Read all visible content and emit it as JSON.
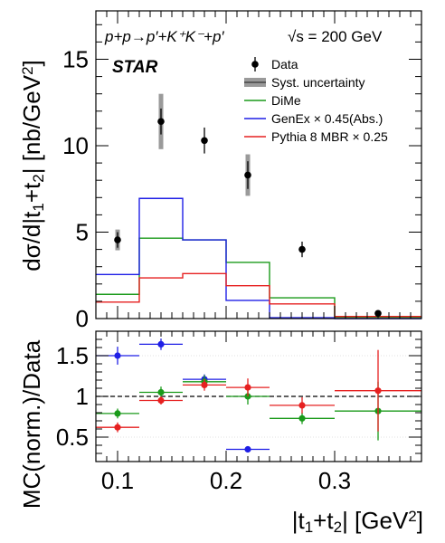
{
  "chart_data": [
    {
      "type": "line",
      "title": "",
      "ylabel_parts": [
        "dσ/d|t",
        "1",
        "+t",
        "2",
        "| [nb/GeV",
        "2",
        "]"
      ],
      "xlim": [
        0.08,
        0.38
      ],
      "ylim": [
        0,
        17.8
      ],
      "yticks": [
        0,
        5,
        10,
        15
      ],
      "ytick_labels": [
        "0",
        "5",
        "10",
        "15"
      ],
      "xticks": [
        0.1,
        0.2,
        0.3
      ],
      "process_label": "p+p→p′+K⁺K⁻+p′",
      "energy_label": "√s = 200 GeV",
      "experiment_label": "STAR",
      "legend": [
        {
          "label": "Data",
          "kind": "marker",
          "color": "#000000"
        },
        {
          "label": "Syst. uncertainty",
          "kind": "band",
          "color": "#9a9a9a"
        },
        {
          "label": "DiMe",
          "kind": "line",
          "color": "#1a9a1a"
        },
        {
          "label": "GenEx × 0.45(Abs.)",
          "kind": "line",
          "color": "#1f1fe6"
        },
        {
          "label": "Pythia 8 MBR × 0.25",
          "kind": "line",
          "color": "#e62020"
        }
      ],
      "data_points": [
        {
          "x": 0.1,
          "y": 4.55,
          "stat": 0.45,
          "syst": 0.6
        },
        {
          "x": 0.14,
          "y": 11.4,
          "stat": 0.75,
          "syst": 1.6
        },
        {
          "x": 0.18,
          "y": 10.3,
          "stat": 0.75,
          "syst": 0.0
        },
        {
          "x": 0.22,
          "y": 8.3,
          "stat": 0.8,
          "syst": 1.2
        },
        {
          "x": 0.27,
          "y": 4.0,
          "stat": 0.45,
          "syst": 0.0
        },
        {
          "x": 0.34,
          "y": 0.3,
          "stat": 0.1,
          "syst": 0.0
        }
      ],
      "bin_edges": [
        0.08,
        0.12,
        0.16,
        0.2,
        0.24,
        0.3,
        0.38
      ],
      "series": [
        {
          "name": "DiMe",
          "color": "#1a9a1a",
          "values": [
            1.4,
            4.65,
            4.55,
            3.25,
            1.2,
            0.08
          ]
        },
        {
          "name": "GenEx",
          "color": "#1f1fe6",
          "values": [
            2.55,
            6.95,
            4.55,
            1.05,
            0.05,
            0.0
          ]
        },
        {
          "name": "Pythia 8 MBR",
          "color": "#e62020",
          "values": [
            0.95,
            2.35,
            2.6,
            1.9,
            0.85,
            0.12
          ]
        }
      ]
    },
    {
      "type": "scatter",
      "ylabel": "MC(norm.)/Data",
      "xlabel_parts": [
        "|t",
        "1",
        "+t",
        "2",
        "| [GeV",
        "2",
        "]"
      ],
      "xlim": [
        0.08,
        0.38
      ],
      "ylim": [
        0.2,
        1.8
      ],
      "yticks": [
        0.5,
        1,
        1.5
      ],
      "ytick_labels": [
        "0.5",
        "1",
        "1.5"
      ],
      "xticks": [
        0.1,
        0.2,
        0.3
      ],
      "xtick_labels": [
        "0.1",
        "0.2",
        "0.3"
      ],
      "reference_line": 1.0,
      "grid": true,
      "series": [
        {
          "name": "GenEx",
          "color": "#1f1fe6",
          "points": [
            {
              "x": 0.1,
              "y": 1.5,
              "xlo": 0.08,
              "xhi": 0.12,
              "err": 0.11
            },
            {
              "x": 0.14,
              "y": 1.64,
              "xlo": 0.12,
              "xhi": 0.16,
              "err": 0.07
            },
            {
              "x": 0.18,
              "y": 1.21,
              "xlo": 0.16,
              "xhi": 0.2,
              "err": 0.06
            },
            {
              "x": 0.22,
              "y": 0.35,
              "xlo": 0.2,
              "xhi": 0.24,
              "err": 0.0
            }
          ]
        },
        {
          "name": "DiMe",
          "color": "#1a9a1a",
          "points": [
            {
              "x": 0.1,
              "y": 0.79,
              "xlo": 0.08,
              "xhi": 0.12,
              "err": 0.06
            },
            {
              "x": 0.14,
              "y": 1.05,
              "xlo": 0.12,
              "xhi": 0.16,
              "err": 0.07
            },
            {
              "x": 0.18,
              "y": 1.18,
              "xlo": 0.16,
              "xhi": 0.2,
              "err": 0.08
            },
            {
              "x": 0.22,
              "y": 1.0,
              "xlo": 0.2,
              "xhi": 0.24,
              "err": 0.1
            },
            {
              "x": 0.27,
              "y": 0.73,
              "xlo": 0.24,
              "xhi": 0.3,
              "err": 0.07
            },
            {
              "x": 0.34,
              "y": 0.82,
              "xlo": 0.3,
              "xhi": 0.38,
              "err": 0.36
            }
          ]
        },
        {
          "name": "Pythia 8 MBR",
          "color": "#e62020",
          "points": [
            {
              "x": 0.1,
              "y": 0.62,
              "xlo": 0.08,
              "xhi": 0.12,
              "err": 0.06
            },
            {
              "x": 0.14,
              "y": 0.95,
              "xlo": 0.12,
              "xhi": 0.16,
              "err": 0.05
            },
            {
              "x": 0.18,
              "y": 1.14,
              "xlo": 0.16,
              "xhi": 0.2,
              "err": 0.07
            },
            {
              "x": 0.22,
              "y": 1.11,
              "xlo": 0.2,
              "xhi": 0.24,
              "err": 0.11
            },
            {
              "x": 0.27,
              "y": 0.89,
              "xlo": 0.24,
              "xhi": 0.3,
              "err": 0.1
            },
            {
              "x": 0.34,
              "y": 1.07,
              "xlo": 0.3,
              "xhi": 0.38,
              "err": 0.5
            }
          ]
        }
      ]
    }
  ]
}
